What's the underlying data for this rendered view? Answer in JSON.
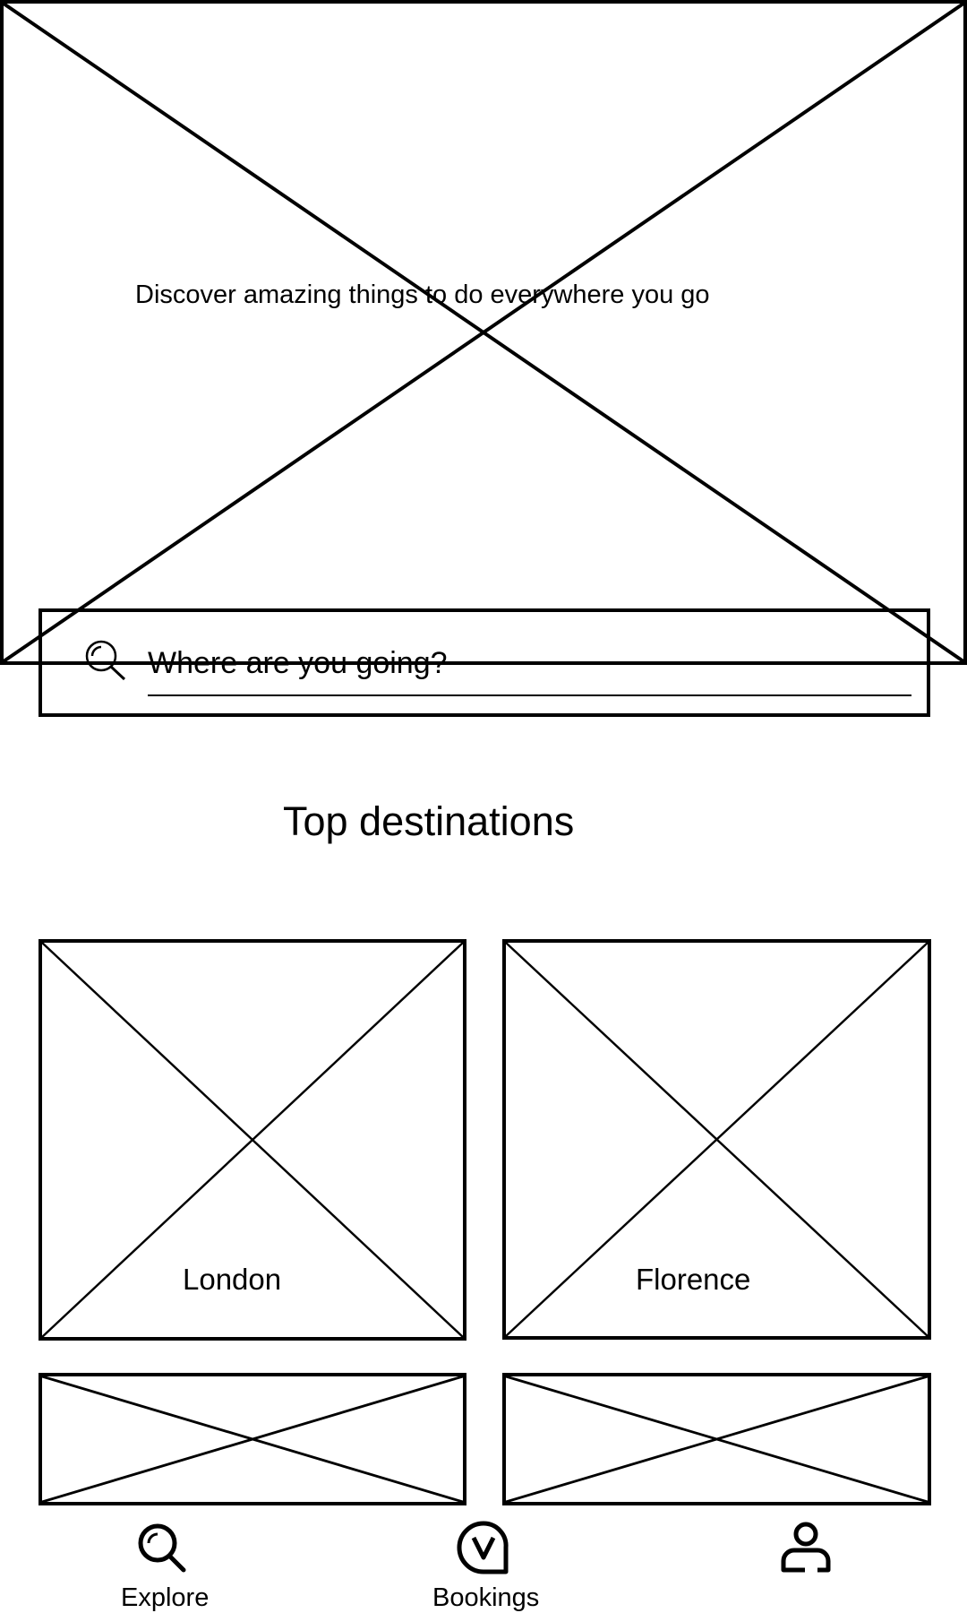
{
  "hero": {
    "tagline": "Discover amazing things to do everywhere you go"
  },
  "search": {
    "icon": "search-icon",
    "placeholder": "Where are you going?"
  },
  "destinations": {
    "title": "Top destinations",
    "tiles": [
      {
        "label": "London"
      },
      {
        "label": "Florence"
      },
      {
        "label": ""
      },
      {
        "label": ""
      }
    ]
  },
  "bottom_nav": {
    "items": [
      {
        "label": "Explore",
        "icon": "search-icon"
      },
      {
        "label": "Bookings",
        "icon": "bookings-icon"
      },
      {
        "label": "",
        "icon": "profile-icon"
      }
    ]
  }
}
